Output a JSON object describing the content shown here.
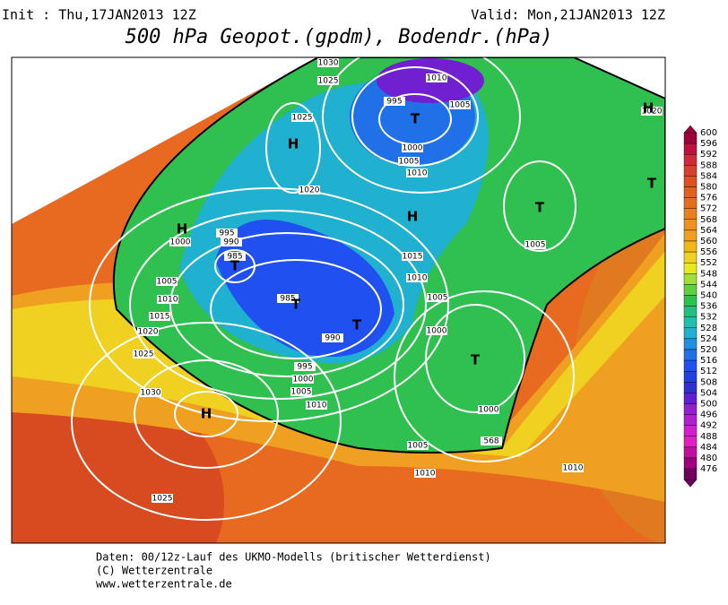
{
  "header": {
    "init": "Init : Thu,17JAN2013 12Z",
    "valid": "Valid: Mon,21JAN2013 12Z",
    "title": "500 hPa Geopot.(gpdm), Bodendr.(hPa)"
  },
  "colorbar": {
    "labels": [
      600,
      596,
      592,
      588,
      584,
      580,
      576,
      572,
      568,
      564,
      560,
      556,
      552,
      548,
      544,
      540,
      536,
      532,
      528,
      524,
      520,
      516,
      512,
      508,
      504,
      500,
      496,
      492,
      488,
      484,
      480,
      476
    ],
    "colors": [
      "#a0003a",
      "#c0103f",
      "#d02a3a",
      "#d84030",
      "#e05020",
      "#e06020",
      "#e07020",
      "#e88020",
      "#f09020",
      "#f0a020",
      "#f0b818",
      "#f0d020",
      "#e8e820",
      "#a0e030",
      "#60d040",
      "#30c050",
      "#20c080",
      "#20c0b0",
      "#20b0d0",
      "#2090e0",
      "#2070e8",
      "#2050f0",
      "#2040e0",
      "#3030d0",
      "#6020d0",
      "#9020d0",
      "#b020d0",
      "#d020d0",
      "#e020c0",
      "#c010a0",
      "#a00080",
      "#700060"
    ]
  },
  "isobar_labels": [
    "1030",
    "1025",
    "1010",
    "1005",
    "995",
    "1000",
    "1005",
    "1010",
    "1025",
    "1020",
    "1000",
    "995",
    "990",
    "985",
    "1005",
    "1010",
    "1015",
    "1020",
    "1025",
    "1030",
    "985",
    "990",
    "995",
    "1000",
    "1005",
    "1010",
    "1015",
    "1010",
    "1005",
    "1000",
    "1005",
    "1000",
    "1005",
    "1010",
    "1010",
    "1025",
    "1020",
    "568"
  ],
  "pressure_centers": [
    "T",
    "H",
    "H",
    "T",
    "H",
    "H",
    "T",
    "T",
    "T",
    "T",
    "T",
    "H"
  ],
  "footer": {
    "line1": "Daten: 00/12z-Lauf des UKMO-Modells (britischer Wetterdienst)",
    "line2": "(C) Wetterzentrale",
    "line3": "www.wetterzentrale.de"
  }
}
